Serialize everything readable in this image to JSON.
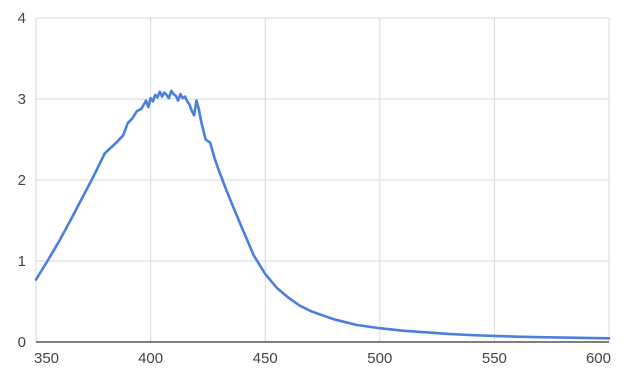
{
  "colors": {
    "series": "#4a7fe0",
    "grid": "#d9d9d9",
    "axis": "#333333",
    "text": "#444444"
  },
  "chart_data": {
    "type": "line",
    "title": "",
    "xlabel": "",
    "ylabel": "",
    "xlim": [
      350,
      600
    ],
    "ylim": [
      0,
      4
    ],
    "grid": true,
    "legend": "none",
    "x_ticks": [
      "350",
      "400",
      "450",
      "500",
      "550",
      "600"
    ],
    "y_ticks": [
      "0",
      "1",
      "2",
      "3",
      "4"
    ],
    "series": [
      {
        "x": [
          350,
          355,
          360,
          365,
          370,
          375,
          380,
          385,
          388,
          390,
          392,
          394,
          396,
          398,
          399,
          400,
          401,
          402,
          403,
          404,
          405,
          406,
          407,
          408,
          409,
          410,
          411,
          412,
          413,
          414,
          415,
          416,
          417,
          418,
          419,
          420,
          421,
          422,
          424,
          426,
          428,
          430,
          433,
          436,
          440,
          445,
          450,
          455,
          460,
          465,
          470,
          480,
          490,
          500,
          510,
          520,
          530,
          540,
          550,
          560,
          570,
          580,
          590,
          600
        ],
        "y": [
          0.77,
          1.0,
          1.24,
          1.5,
          1.77,
          2.04,
          2.33,
          2.46,
          2.55,
          2.7,
          2.76,
          2.85,
          2.88,
          2.98,
          2.9,
          3.01,
          2.97,
          3.05,
          3.02,
          3.09,
          3.03,
          3.08,
          3.05,
          3.01,
          3.1,
          3.06,
          3.04,
          2.98,
          3.06,
          3.01,
          3.03,
          2.97,
          2.93,
          2.85,
          2.8,
          2.98,
          2.88,
          2.73,
          2.5,
          2.46,
          2.26,
          2.1,
          1.88,
          1.67,
          1.4,
          1.07,
          0.84,
          0.67,
          0.55,
          0.45,
          0.38,
          0.28,
          0.21,
          0.17,
          0.14,
          0.12,
          0.1,
          0.085,
          0.075,
          0.066,
          0.06,
          0.055,
          0.05,
          0.046
        ]
      }
    ]
  }
}
